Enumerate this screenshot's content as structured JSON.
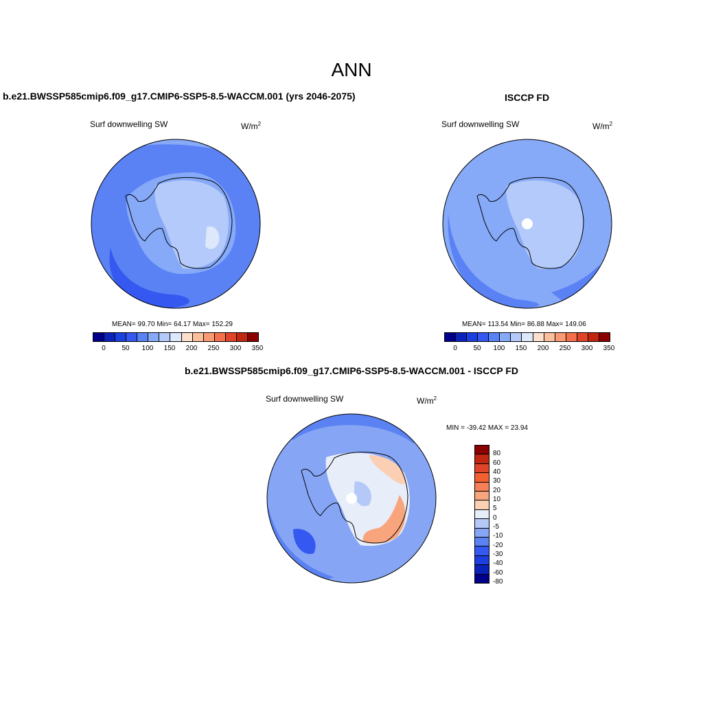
{
  "title": "ANN",
  "panels": [
    {
      "title": "b.e21.BWSSP585cmip6.f09_g17.CMIP6-SSP5-8.5-WACCM.001 (yrs 2046-2075)",
      "variable": "Surf downwelling SW",
      "units_base": "W/m",
      "units_sup": "2",
      "stats": "MEAN=  99.70  Min=  64.17  Max= 152.29",
      "colorbar_ticks": [
        "0",
        "50",
        "100",
        "150",
        "200",
        "250",
        "300",
        "350"
      ]
    },
    {
      "title": "ISCCP FD",
      "variable": "Surf downwelling SW",
      "units_base": "W/m",
      "units_sup": "2",
      "stats": "MEAN= 113.54  Min=  86.88  Max= 149.06",
      "colorbar_ticks": [
        "0",
        "50",
        "100",
        "150",
        "200",
        "250",
        "300",
        "350"
      ]
    },
    {
      "title": "b.e21.BWSSP585cmip6.f09_g17.CMIP6-SSP5-8.5-WACCM.001 - ISCCP FD",
      "variable": "Surf downwelling SW",
      "units_base": "W/m",
      "units_sup": "2",
      "stats": "MIN = -39.42 MAX =  23.94",
      "colorbar_ticks": [
        "80",
        "60",
        "40",
        "30",
        "20",
        "10",
        "5",
        "0",
        "-5",
        "-10",
        "-20",
        "-30",
        "-40",
        "-60",
        "-80"
      ]
    }
  ],
  "colors": {
    "abs_scale": [
      "#00008b",
      "#0b22b8",
      "#1c3fe0",
      "#3558f0",
      "#5a82f5",
      "#86a9f8",
      "#b4cafa",
      "#dde8fb",
      "#fde0cc",
      "#fcbf9e",
      "#fa9a72",
      "#f2704c",
      "#e04428",
      "#c02610",
      "#8b0000"
    ],
    "diff_scale": [
      "#8b0000",
      "#c02610",
      "#e04428",
      "#f26031",
      "#f58055",
      "#f8a57e",
      "#fbcfb4",
      "#e8eef9",
      "#b4c9f8",
      "#86a6f5",
      "#5a82f2",
      "#3558f0",
      "#1c3fe0",
      "#0b22b8",
      "#00008b"
    ]
  }
}
